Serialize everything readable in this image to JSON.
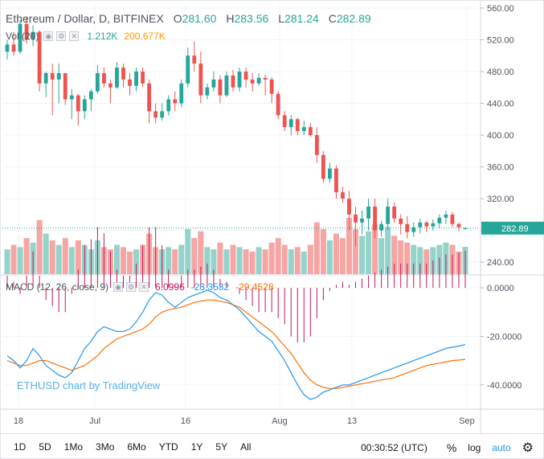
{
  "legend": {
    "symbol": "Ethereum / Dollar, D, BITFINEX",
    "o_label": "O",
    "o_value": "281.60",
    "h_label": "H",
    "h_value": "283.56",
    "l_label": "L",
    "l_value": "281.24",
    "c_label": "C",
    "c_value": "282.89"
  },
  "volume_legend": {
    "label": "Vol (20)",
    "value1": "1.212K",
    "value2": "200.677K"
  },
  "macd_legend": {
    "label": "MACD (12, 26, close, 9)",
    "hist": "6.0996",
    "macd": "-23.3532",
    "signal": "-29.4528"
  },
  "watermark": "ETHUSD chart by TradingView",
  "price_axis": {
    "ticks": [
      "560.00",
      "520.00",
      "480.00",
      "440.00",
      "400.00",
      "360.00",
      "320.00",
      "280.00",
      "240.00"
    ],
    "last_price": "282.89"
  },
  "macd_axis": {
    "ticks": [
      "0.0000",
      "-20.0000",
      "-40.0000"
    ]
  },
  "time_axis": {
    "ticks": [
      "18",
      "Jul",
      "16",
      "Aug",
      "13",
      "Sep"
    ]
  },
  "bottom_bar": {
    "ranges": [
      "1D",
      "5D",
      "1Mo",
      "3Mo",
      "6Mo",
      "YTD",
      "1Y",
      "5Y",
      "All"
    ],
    "clock": "00:30:52 (UTC)",
    "percent": "%",
    "log": "log",
    "auto": "auto"
  },
  "colors": {
    "up": "#26a69a",
    "down": "#ef5350",
    "macd": "#2196f3",
    "signal": "#ff6d00",
    "hist": "#c2185b",
    "vol_up": "#94d3c9",
    "vol_down": "#f5a6a4"
  },
  "chart_data": {
    "type": "candlestick",
    "ohlc": [
      [
        505,
        520,
        495,
        514
      ],
      [
        514,
        530,
        500,
        505
      ],
      [
        505,
        545,
        502,
        540
      ],
      [
        540,
        549,
        515,
        520
      ],
      [
        520,
        538,
        512,
        530
      ],
      [
        530,
        532,
        455,
        465
      ],
      [
        465,
        480,
        448,
        478
      ],
      [
        478,
        490,
        425,
        470
      ],
      [
        470,
        490,
        440,
        478
      ],
      [
        478,
        478,
        438,
        445
      ],
      [
        445,
        458,
        420,
        450
      ],
      [
        450,
        452,
        412,
        430
      ],
      [
        430,
        450,
        420,
        445
      ],
      [
        445,
        458,
        430,
        455
      ],
      [
        455,
        488,
        452,
        478
      ],
      [
        478,
        485,
        460,
        465
      ],
      [
        465,
        470,
        440,
        460
      ],
      [
        460,
        492,
        458,
        485
      ],
      [
        485,
        490,
        460,
        470
      ],
      [
        470,
        478,
        450,
        462
      ],
      [
        462,
        485,
        455,
        480
      ],
      [
        480,
        485,
        460,
        465
      ],
      [
        465,
        470,
        415,
        430
      ],
      [
        430,
        440,
        415,
        422
      ],
      [
        422,
        440,
        418,
        430
      ],
      [
        430,
        450,
        425,
        445
      ],
      [
        445,
        455,
        430,
        440
      ],
      [
        440,
        470,
        435,
        465
      ],
      [
        465,
        510,
        460,
        500
      ],
      [
        500,
        518,
        480,
        490
      ],
      [
        490,
        505,
        440,
        450
      ],
      [
        450,
        465,
        445,
        460
      ],
      [
        460,
        480,
        455,
        470
      ],
      [
        470,
        475,
        440,
        450
      ],
      [
        450,
        480,
        448,
        475
      ],
      [
        475,
        482,
        455,
        460
      ],
      [
        460,
        485,
        455,
        480
      ],
      [
        480,
        485,
        460,
        470
      ],
      [
        470,
        478,
        455,
        465
      ],
      [
        465,
        478,
        462,
        472
      ],
      [
        472,
        476,
        450,
        470
      ],
      [
        470,
        473,
        440,
        452
      ],
      [
        452,
        455,
        420,
        425
      ],
      [
        425,
        430,
        405,
        410
      ],
      [
        410,
        425,
        400,
        420
      ],
      [
        420,
        422,
        400,
        405
      ],
      [
        405,
        418,
        400,
        410
      ],
      [
        410,
        415,
        398,
        400
      ],
      [
        400,
        410,
        365,
        375
      ],
      [
        375,
        380,
        340,
        345
      ],
      [
        345,
        365,
        340,
        358
      ],
      [
        358,
        362,
        320,
        328
      ],
      [
        328,
        335,
        315,
        320
      ],
      [
        320,
        330,
        280,
        300
      ],
      [
        300,
        310,
        260,
        290
      ],
      [
        290,
        305,
        275,
        295
      ],
      [
        295,
        320,
        280,
        310
      ],
      [
        310,
        320,
        270,
        280
      ],
      [
        280,
        292,
        272,
        288
      ],
      [
        288,
        320,
        280,
        310
      ],
      [
        310,
        315,
        290,
        295
      ],
      [
        295,
        300,
        275,
        288
      ],
      [
        288,
        298,
        270,
        278
      ],
      [
        278,
        290,
        272,
        284
      ],
      [
        284,
        295,
        276,
        290
      ],
      [
        290,
        292,
        278,
        285
      ],
      [
        285,
        294,
        280,
        289
      ],
      [
        289,
        300,
        283,
        296
      ],
      [
        296,
        305,
        288,
        300
      ],
      [
        300,
        303,
        284,
        288
      ],
      [
        288,
        290,
        279,
        284
      ],
      [
        281.6,
        283.56,
        281.24,
        282.89
      ]
    ],
    "volume": [
      1.1,
      1.3,
      1.2,
      1.6,
      1.4,
      2.4,
      1.8,
      1.5,
      1.3,
      1.6,
      1.2,
      1.5,
      1.3,
      1.1,
      1.5,
      1.2,
      1.1,
      1.3,
      1.2,
      1.0,
      1.1,
      1.3,
      1.8,
      1.2,
      1.1,
      1.2,
      1.1,
      1.3,
      2.0,
      1.6,
      1.9,
      1.2,
      1.1,
      1.4,
      1.1,
      1.3,
      1.2,
      1.1,
      1.0,
      1.2,
      1.1,
      1.4,
      1.6,
      1.3,
      1.1,
      1.2,
      1.0,
      1.3,
      2.3,
      2.0,
      1.5,
      1.8,
      1.6,
      2.5,
      2.0,
      1.7,
      1.9,
      2.2,
      1.6,
      2.1,
      1.7,
      1.5,
      1.4,
      1.3,
      1.2,
      1.1,
      1.2,
      1.3,
      1.4,
      1.3,
      1.0,
      1.212
    ],
    "macd": [
      -28,
      -30,
      -33,
      -30,
      -25,
      -28,
      -32,
      -34,
      -36,
      -37,
      -35,
      -30,
      -25,
      -22,
      -18,
      -16,
      -17,
      -18,
      -18,
      -17,
      -14,
      -10,
      -5,
      -2,
      -3,
      -6,
      -8,
      -6,
      -4,
      -3,
      -2,
      -1,
      -2,
      -4,
      -5,
      -7,
      -9,
      -12,
      -15,
      -18,
      -20,
      -22,
      -26,
      -30,
      -35,
      -40,
      -44,
      -46,
      -45,
      -43,
      -42,
      -41,
      -40,
      -40,
      -39,
      -38,
      -37,
      -36,
      -35,
      -34,
      -33,
      -32,
      -31,
      -30,
      -29,
      -28,
      -27,
      -26,
      -25,
      -24.5,
      -24,
      -23.3532
    ],
    "signal": [
      -30,
      -31,
      -32,
      -32,
      -31,
      -30,
      -30,
      -31,
      -32,
      -33,
      -34,
      -33,
      -32,
      -30,
      -28,
      -25,
      -23,
      -21,
      -20,
      -19,
      -18,
      -17,
      -15,
      -12,
      -10,
      -9,
      -8.5,
      -8,
      -7,
      -6,
      -5.5,
      -5,
      -5,
      -5.5,
      -6,
      -7,
      -8,
      -10,
      -12,
      -14,
      -16,
      -18,
      -21,
      -24,
      -27,
      -31,
      -35,
      -38,
      -40,
      -41,
      -41.5,
      -41.5,
      -41,
      -40.5,
      -40,
      -39.5,
      -39,
      -38.5,
      -38,
      -37.5,
      -37,
      -36,
      -35,
      -34,
      -33,
      -32,
      -31.5,
      -31,
      -30.5,
      -30,
      -29.8,
      -29.4528
    ],
    "ylim": [
      225,
      565
    ],
    "macd_ylim": [
      -50,
      5
    ]
  }
}
